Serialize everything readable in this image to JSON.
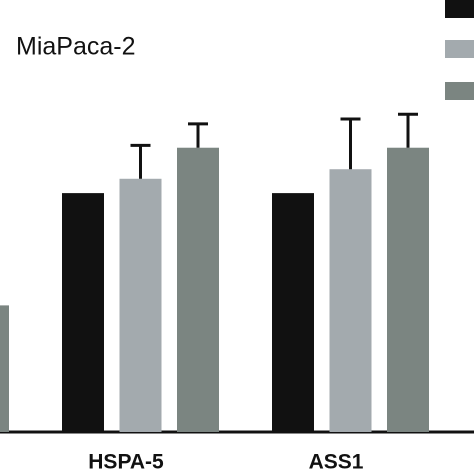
{
  "chart_data": {
    "type": "bar",
    "title": "MiaPaca-2",
    "categories": [
      null,
      "HSPA-5",
      "ASS1"
    ],
    "series": [
      {
        "color": "#111111",
        "values": [
          null,
          1.0,
          1.0
        ],
        "errors": [
          null,
          0,
          0
        ]
      },
      {
        "color": "#a3aaae",
        "values": [
          null,
          1.06,
          1.1
        ],
        "errors": [
          null,
          0.14,
          0.21
        ]
      },
      {
        "color": "#7b8581",
        "values": [
          0.53,
          1.19,
          1.19
        ],
        "errors": [
          null,
          0.1,
          0.14
        ]
      }
    ],
    "ylim": [
      0,
      1.8
    ]
  }
}
